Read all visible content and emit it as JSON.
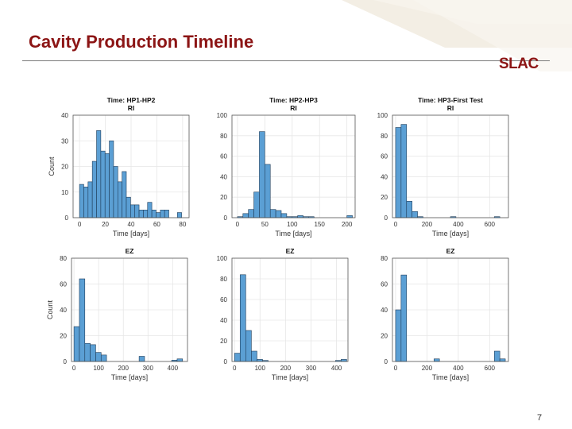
{
  "slide": {
    "title": "Cavity Production Timeline",
    "logo": "SLAC",
    "page_number": "7",
    "colors": {
      "title": "#8c1515",
      "bar_fill": "#5b9fd4",
      "bar_edge": "#1f3d5a",
      "grid": "#e6e6e6"
    }
  },
  "chart_data": [
    {
      "type": "bar",
      "title": [
        "Time: HP1-HP2",
        "RI"
      ],
      "xlabel": "Time [days]",
      "ylabel": "Count",
      "xlim": [
        -5,
        85
      ],
      "ylim": [
        0,
        40
      ],
      "xticks": [
        0,
        20,
        40,
        60,
        80
      ],
      "yticks": [
        0,
        10,
        20,
        30,
        40
      ],
      "bin_edges": [
        0,
        3.3,
        6.6,
        9.9,
        13.2,
        16.5,
        19.8,
        23.1,
        26.4,
        29.7,
        33,
        36.3,
        39.6,
        42.9,
        46.2,
        49.5,
        52.8,
        56.1,
        59.4,
        62.7,
        66,
        69.3,
        72.6,
        75.9,
        79.2,
        82.5
      ],
      "values": [
        13,
        12,
        14,
        22,
        34,
        26,
        25,
        30,
        20,
        14,
        18,
        8,
        5,
        5,
        3,
        3,
        6,
        3,
        2,
        3,
        3,
        0,
        0,
        2,
        0
      ]
    },
    {
      "type": "bar",
      "title": [
        "Time: HP2-HP3",
        "RI"
      ],
      "xlabel": "Time [days]",
      "ylabel": "",
      "xlim": [
        -10,
        215
      ],
      "ylim": [
        0,
        100
      ],
      "xticks": [
        0,
        50,
        100,
        150,
        200
      ],
      "yticks": [
        0,
        20,
        40,
        60,
        80,
        100
      ],
      "bin_edges": [
        0,
        10,
        20,
        30,
        40,
        50,
        60,
        70,
        80,
        90,
        100,
        110,
        120,
        130,
        140,
        150,
        160,
        170,
        180,
        190,
        200,
        210
      ],
      "values": [
        1,
        4,
        8,
        25,
        84,
        52,
        8,
        7,
        4,
        1,
        1,
        2,
        1,
        1,
        0,
        0,
        0,
        0,
        0,
        0,
        2
      ],
      "values_bin_start": 0
    },
    {
      "type": "bar",
      "title": [
        "Time: HP3-First Test",
        "RI"
      ],
      "xlabel": "Time [days]",
      "ylabel": "",
      "xlim": [
        -20,
        720
      ],
      "ylim": [
        0,
        100
      ],
      "xticks": [
        0,
        200,
        400,
        600
      ],
      "yticks": [
        0,
        20,
        40,
        60,
        80,
        100
      ],
      "bin_edges": [
        0,
        35,
        70,
        105,
        140,
        175,
        210,
        245,
        280,
        315,
        350,
        385,
        420,
        455,
        490,
        525,
        560,
        595,
        630,
        665,
        700
      ],
      "values": [
        88,
        91,
        16,
        6,
        1,
        0,
        0,
        0,
        0,
        0,
        1,
        0,
        0,
        0,
        0,
        0,
        0,
        0,
        1,
        0
      ]
    },
    {
      "type": "bar",
      "title": [
        "EZ"
      ],
      "xlabel": "Time [days]",
      "ylabel": "Count",
      "xlim": [
        -10,
        460
      ],
      "ylim": [
        0,
        80
      ],
      "xticks": [
        0,
        100,
        200,
        300,
        400
      ],
      "yticks": [
        0,
        20,
        40,
        60,
        80
      ],
      "bin_edges": [
        0,
        22,
        44,
        66,
        88,
        110,
        132,
        154,
        176,
        198,
        220,
        242,
        264,
        286,
        308,
        330,
        352,
        374,
        396,
        418,
        440
      ],
      "values": [
        27,
        64,
        14,
        13,
        7,
        5,
        0,
        0,
        0,
        0,
        0,
        0,
        4,
        0,
        0,
        0,
        0,
        0,
        1,
        2
      ],
      "extra_bins": [
        [
          418,
          440,
          2
        ]
      ]
    },
    {
      "type": "bar",
      "title": [
        "EZ"
      ],
      "xlabel": "Time [days]",
      "ylabel": "",
      "xlim": [
        -10,
        445
      ],
      "ylim": [
        0,
        100
      ],
      "xticks": [
        0,
        100,
        200,
        300,
        400
      ],
      "yticks": [
        0,
        20,
        40,
        60,
        80,
        100
      ],
      "bin_edges": [
        0,
        22,
        44,
        66,
        88,
        110,
        132,
        154,
        176,
        198,
        220,
        242,
        264,
        286,
        308,
        330,
        352,
        374,
        396,
        418,
        440
      ],
      "values": [
        8,
        84,
        30,
        10,
        2,
        1,
        0,
        0,
        0,
        0,
        0,
        0,
        0,
        0,
        0,
        0,
        0,
        0,
        1,
        2
      ]
    },
    {
      "type": "bar",
      "title": [
        "EZ"
      ],
      "xlabel": "Time [days]",
      "ylabel": "",
      "xlim": [
        -20,
        720
      ],
      "ylim": [
        0,
        80
      ],
      "xticks": [
        0,
        200,
        400,
        600
      ],
      "yticks": [
        0,
        20,
        40,
        60,
        80
      ],
      "bin_edges": [
        0,
        35,
        70,
        105,
        140,
        175,
        210,
        245,
        280,
        315,
        350,
        385,
        420,
        455,
        490,
        525,
        560,
        595,
        630,
        665,
        700
      ],
      "values": [
        40,
        67,
        0,
        0,
        0,
        0,
        0,
        2,
        0,
        0,
        0,
        0,
        0,
        0,
        0,
        0,
        0,
        0,
        8,
        2
      ]
    }
  ]
}
